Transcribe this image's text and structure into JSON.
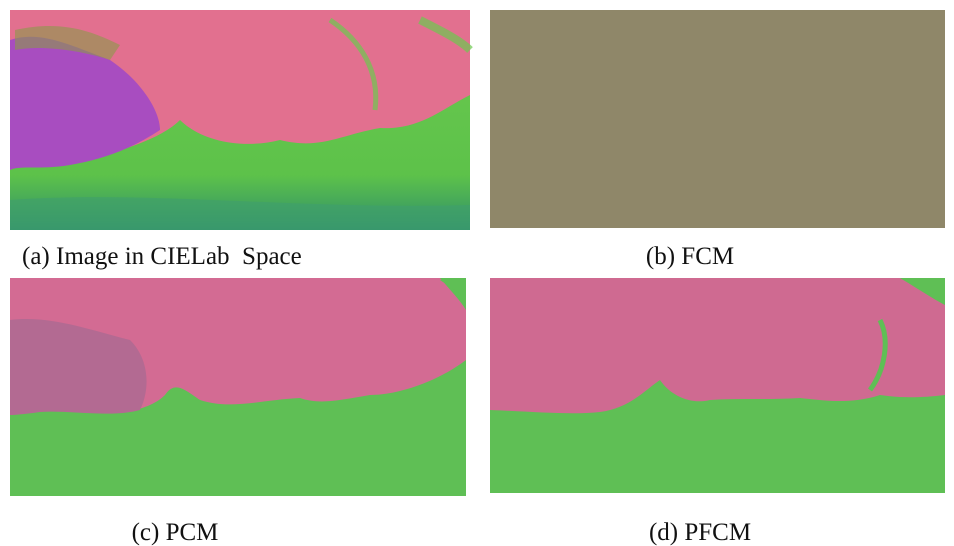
{
  "figure": {
    "panels": [
      {
        "caption": "(a) Image in CIELab  Space"
      },
      {
        "caption": "(b) FCM"
      },
      {
        "caption": "(c) PCM"
      },
      {
        "caption": "(d) PFCM"
      }
    ]
  }
}
